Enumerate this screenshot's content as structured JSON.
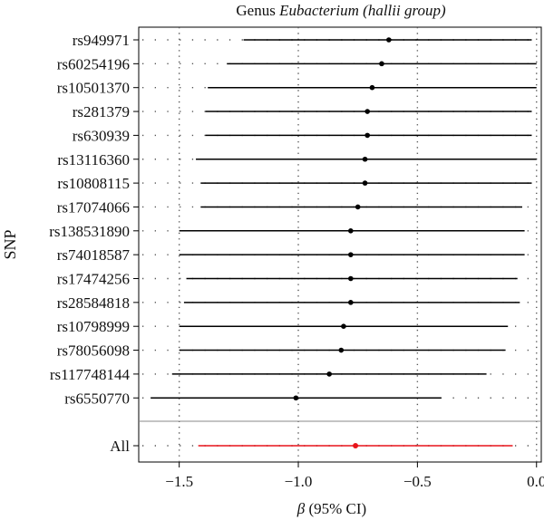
{
  "chart_data": {
    "type": "forest",
    "title_plain": "Genus ",
    "title_italic": "Eubacterium (hallii group)",
    "xlabel_symbol": "β",
    "xlabel_rest": " (95% CI)",
    "ylabel": "SNP",
    "xlim": [
      -1.67,
      0.02
    ],
    "x_ticks": [
      -1.5,
      -1.0,
      -0.5,
      0.0
    ],
    "x_tick_labels": [
      "−1.5",
      "−1.0",
      "−0.5",
      "0.0"
    ],
    "grid": "dotted",
    "rows": [
      {
        "label": "rs949971",
        "beta": -0.62,
        "lo": -1.23,
        "hi": -0.02
      },
      {
        "label": "rs60254196",
        "beta": -0.65,
        "lo": -1.3,
        "hi": 0.0
      },
      {
        "label": "rs10501370",
        "beta": -0.69,
        "lo": -1.38,
        "hi": 0.0
      },
      {
        "label": "rs281379",
        "beta": -0.71,
        "lo": -1.39,
        "hi": -0.02
      },
      {
        "label": "rs630939",
        "beta": -0.71,
        "lo": -1.39,
        "hi": -0.02
      },
      {
        "label": "rs13116360",
        "beta": -0.72,
        "lo": -1.43,
        "hi": 0.0
      },
      {
        "label": "rs10808115",
        "beta": -0.72,
        "lo": -1.41,
        "hi": -0.02
      },
      {
        "label": "rs17074066",
        "beta": -0.75,
        "lo": -1.41,
        "hi": -0.06
      },
      {
        "label": "rs138531890",
        "beta": -0.78,
        "lo": -1.5,
        "hi": -0.05
      },
      {
        "label": "rs74018587",
        "beta": -0.78,
        "lo": -1.5,
        "hi": -0.05
      },
      {
        "label": "rs17474256",
        "beta": -0.78,
        "lo": -1.47,
        "hi": -0.08
      },
      {
        "label": "rs28584818",
        "beta": -0.78,
        "lo": -1.48,
        "hi": -0.07
      },
      {
        "label": "rs10798999",
        "beta": -0.81,
        "lo": -1.5,
        "hi": -0.12
      },
      {
        "label": "rs78056098",
        "beta": -0.82,
        "lo": -1.5,
        "hi": -0.13
      },
      {
        "label": "rs117748144",
        "beta": -0.87,
        "lo": -1.53,
        "hi": -0.21
      },
      {
        "label": "rs6550770",
        "beta": -1.01,
        "lo": -1.62,
        "hi": -0.4
      }
    ],
    "summary": {
      "label": "All",
      "beta": -0.76,
      "lo": -1.42,
      "hi": -0.1
    },
    "colors": {
      "snp": "#000000",
      "summary": "#e8141a",
      "grid": "#555555",
      "separator": "#888888"
    }
  }
}
